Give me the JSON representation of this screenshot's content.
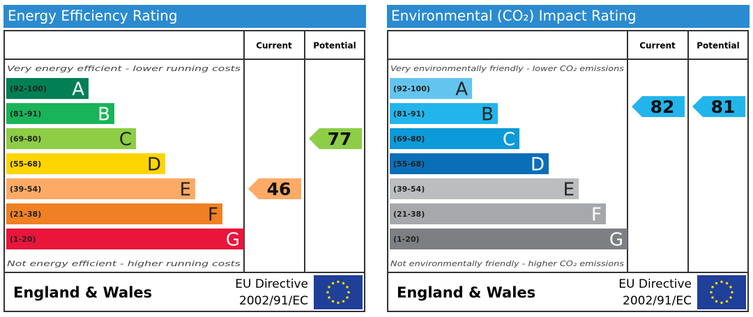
{
  "panels": [
    {
      "title": "Energy Efficiency Rating",
      "columns": [
        "Current",
        "Potential"
      ],
      "top_note": "Very energy efficient - lower running costs",
      "bottom_note": "Not energy efficient - higher running costs",
      "bands": [
        {
          "range": "(92-100)",
          "letter": "A",
          "color": "#008054"
        },
        {
          "range": "(81-91)",
          "letter": "B",
          "color": "#19b459"
        },
        {
          "range": "(69-80)",
          "letter": "C",
          "color": "#8dce46"
        },
        {
          "range": "(55-68)",
          "letter": "D",
          "color": "#ffd500"
        },
        {
          "range": "(39-54)",
          "letter": "E",
          "color": "#fcaa65"
        },
        {
          "range": "(21-38)",
          "letter": "F",
          "color": "#ef8023"
        },
        {
          "range": "(1-20)",
          "letter": "G",
          "color": "#e9153b"
        }
      ],
      "current": "46",
      "potential": "77",
      "region": "England & Wales",
      "directive": [
        "EU Directive",
        "2002/91/EC"
      ]
    },
    {
      "title": "Environmental (CO₂) Impact Rating",
      "columns": [
        "Current",
        "Potential"
      ],
      "top_note": "Very environmentally friendly - lower CO₂ emissions",
      "bottom_note": "Not environmentally friendly - higher CO₂ emissions",
      "bands": [
        {
          "range": "(92-100)",
          "letter": "A",
          "color": "#63c5ef"
        },
        {
          "range": "(81-91)",
          "letter": "B",
          "color": "#22b5eb"
        },
        {
          "range": "(69-80)",
          "letter": "C",
          "color": "#0d9ad8"
        },
        {
          "range": "(55-68)",
          "letter": "D",
          "color": "#0a6fb8"
        },
        {
          "range": "(39-54)",
          "letter": "E",
          "color": "#bbbdbf"
        },
        {
          "range": "(21-38)",
          "letter": "F",
          "color": "#a6a8ab"
        },
        {
          "range": "(1-20)",
          "letter": "G",
          "color": "#7d7f82"
        }
      ],
      "current": "82",
      "potential": "81",
      "region": "England & Wales",
      "directive": [
        "EU Directive",
        "2002/91/EC"
      ]
    }
  ]
}
